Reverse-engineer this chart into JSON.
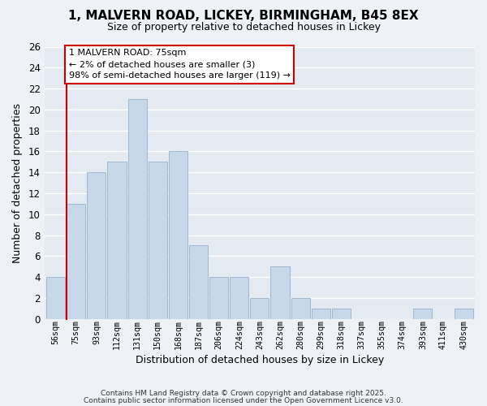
{
  "title1": "1, MALVERN ROAD, LICKEY, BIRMINGHAM, B45 8EX",
  "title2": "Size of property relative to detached houses in Lickey",
  "xlabel": "Distribution of detached houses by size in Lickey",
  "ylabel": "Number of detached properties",
  "bins": [
    "56sqm",
    "75sqm",
    "93sqm",
    "112sqm",
    "131sqm",
    "150sqm",
    "168sqm",
    "187sqm",
    "206sqm",
    "224sqm",
    "243sqm",
    "262sqm",
    "280sqm",
    "299sqm",
    "318sqm",
    "337sqm",
    "355sqm",
    "374sqm",
    "393sqm",
    "411sqm",
    "430sqm"
  ],
  "counts": [
    4,
    11,
    14,
    15,
    21,
    15,
    16,
    7,
    4,
    4,
    2,
    5,
    2,
    1,
    1,
    0,
    0,
    0,
    1,
    0,
    1
  ],
  "highlight_bin_index": 1,
  "bar_color": "#c8d8eb",
  "bar_edge_color": "#a0b8d0",
  "highlight_bar_edge_color": "#cc0000",
  "ylim": [
    0,
    26
  ],
  "yticks": [
    0,
    2,
    4,
    6,
    8,
    10,
    12,
    14,
    16,
    18,
    20,
    22,
    24,
    26
  ],
  "annotation_title": "1 MALVERN ROAD: 75sqm",
  "annotation_line1": "← 2% of detached houses are smaller (3)",
  "annotation_line2": "98% of semi-detached houses are larger (119) →",
  "annotation_box_facecolor": "#ffffff",
  "annotation_box_edgecolor": "#cc0000",
  "footer1": "Contains HM Land Registry data © Crown copyright and database right 2025.",
  "footer2": "Contains public sector information licensed under the Open Government Licence v3.0.",
  "bg_color": "#eef2f7",
  "plot_bg_color": "#e4eaf2"
}
